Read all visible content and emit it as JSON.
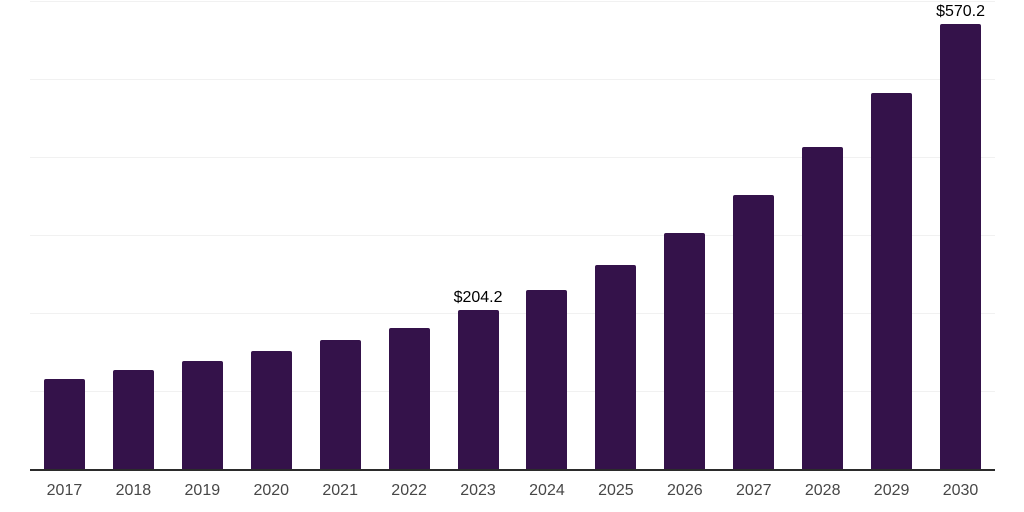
{
  "chart_data": {
    "type": "bar",
    "title": "",
    "xlabel": "",
    "ylabel": "",
    "categories": [
      "2017",
      "2018",
      "2019",
      "2020",
      "2021",
      "2022",
      "2023",
      "2024",
      "2025",
      "2026",
      "2027",
      "2028",
      "2029",
      "2030"
    ],
    "values": [
      114.9,
      126.3,
      139.0,
      151.9,
      165.8,
      181.1,
      204.2,
      229.6,
      262.1,
      302.9,
      351.7,
      412.4,
      481.8,
      570.2
    ],
    "data_labels": {
      "2023": "$204.2",
      "2030": "$570.2"
    },
    "ylim": [
      0,
      600
    ],
    "grid_step": 100,
    "grid": true,
    "legend": false,
    "y_tick_labels_visible": false,
    "colors": {
      "bar": "#34124a",
      "axis_line": "#2b2b2b",
      "gridline": "#f1f1f1",
      "tick_label": "#474747",
      "data_label": "#000000",
      "background": "#ffffff"
    }
  }
}
